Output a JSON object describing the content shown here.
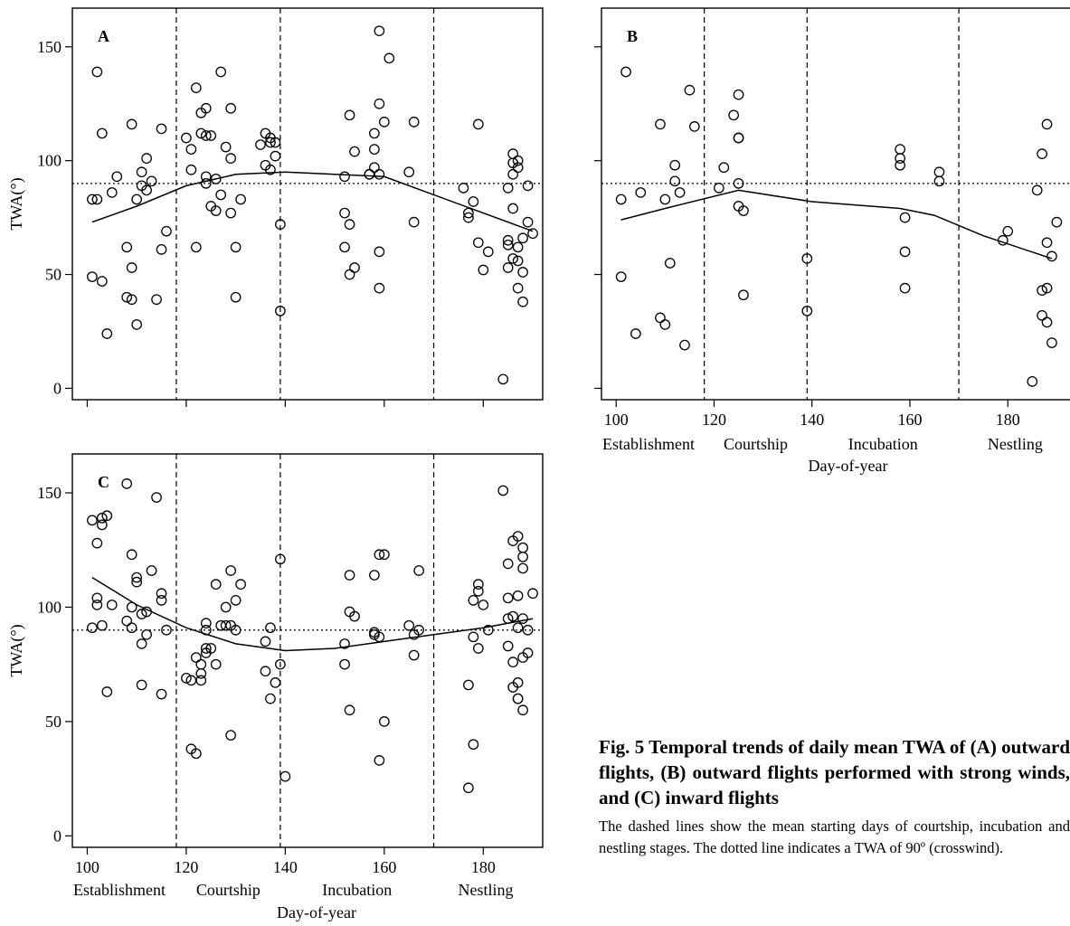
{
  "chart_data": [
    {
      "type": "scatter",
      "panel_label": "A",
      "ylabel": "TWA(°)",
      "xlabel": "",
      "xlim": [
        97,
        192
      ],
      "ylim": [
        -5,
        167
      ],
      "xticks": [
        100,
        120,
        140,
        160,
        180
      ],
      "yticks": [
        0,
        50,
        100,
        150
      ],
      "stage_labels": [],
      "stage_boundaries": [
        118,
        139,
        170
      ],
      "reference_line": 90,
      "points": [
        [
          101,
          49
        ],
        [
          101,
          83
        ],
        [
          102,
          83
        ],
        [
          102,
          139
        ],
        [
          103,
          47
        ],
        [
          103,
          112
        ],
        [
          104,
          24
        ],
        [
          105,
          86
        ],
        [
          106,
          93
        ],
        [
          108,
          62
        ],
        [
          108,
          40
        ],
        [
          109,
          116
        ],
        [
          109,
          53
        ],
        [
          109,
          39
        ],
        [
          110,
          28
        ],
        [
          110,
          83
        ],
        [
          111,
          95
        ],
        [
          111,
          89
        ],
        [
          112,
          87
        ],
        [
          112,
          101
        ],
        [
          113,
          91
        ],
        [
          114,
          39
        ],
        [
          115,
          114
        ],
        [
          115,
          61
        ],
        [
          116,
          69
        ],
        [
          120,
          110
        ],
        [
          121,
          96
        ],
        [
          121,
          105
        ],
        [
          122,
          132
        ],
        [
          122,
          62
        ],
        [
          123,
          121
        ],
        [
          123,
          112
        ],
        [
          124,
          111
        ],
        [
          124,
          93
        ],
        [
          124,
          123
        ],
        [
          124,
          90
        ],
        [
          125,
          80
        ],
        [
          125,
          111
        ],
        [
          126,
          78
        ],
        [
          126,
          92
        ],
        [
          127,
          139
        ],
        [
          127,
          85
        ],
        [
          128,
          106
        ],
        [
          129,
          123
        ],
        [
          129,
          101
        ],
        [
          129,
          77
        ],
        [
          130,
          40
        ],
        [
          130,
          62
        ],
        [
          131,
          83
        ],
        [
          135,
          107
        ],
        [
          136,
          112
        ],
        [
          136,
          98
        ],
        [
          137,
          96
        ],
        [
          137,
          108
        ],
        [
          137,
          110
        ],
        [
          138,
          102
        ],
        [
          138,
          108
        ],
        [
          139,
          34
        ],
        [
          139,
          72
        ],
        [
          152,
          77
        ],
        [
          152,
          93
        ],
        [
          152,
          62
        ],
        [
          153,
          120
        ],
        [
          153,
          72
        ],
        [
          153,
          50
        ],
        [
          154,
          104
        ],
        [
          154,
          53
        ],
        [
          157,
          94
        ],
        [
          157,
          94
        ],
        [
          158,
          105
        ],
        [
          158,
          97
        ],
        [
          158,
          112
        ],
        [
          159,
          157
        ],
        [
          159,
          125
        ],
        [
          159,
          94
        ],
        [
          159,
          60
        ],
        [
          159,
          44
        ],
        [
          160,
          117
        ],
        [
          161,
          145
        ],
        [
          165,
          95
        ],
        [
          166,
          73
        ],
        [
          166,
          117
        ],
        [
          176,
          88
        ],
        [
          177,
          77
        ],
        [
          177,
          75
        ],
        [
          178,
          82
        ],
        [
          179,
          116
        ],
        [
          179,
          64
        ],
        [
          180,
          52
        ],
        [
          181,
          60
        ],
        [
          184,
          4
        ],
        [
          185,
          88
        ],
        [
          185,
          65
        ],
        [
          185,
          63
        ],
        [
          185,
          53
        ],
        [
          186,
          94
        ],
        [
          186,
          103
        ],
        [
          186,
          99
        ],
        [
          186,
          79
        ],
        [
          186,
          57
        ],
        [
          187,
          100
        ],
        [
          187,
          97
        ],
        [
          187,
          62
        ],
        [
          187,
          56
        ],
        [
          187,
          44
        ],
        [
          188,
          51
        ],
        [
          188,
          38
        ],
        [
          188,
          66
        ],
        [
          189,
          89
        ],
        [
          189,
          73
        ],
        [
          190,
          68
        ]
      ],
      "trend_x": [
        101,
        110,
        120,
        130,
        140,
        150,
        160,
        170,
        180,
        190
      ],
      "trend_y": [
        73,
        80,
        89,
        94,
        95,
        94,
        93,
        85,
        77,
        69
      ]
    },
    {
      "type": "scatter",
      "panel_label": "B",
      "ylabel": "",
      "xlabel": "Day-of-year",
      "xlim": [
        97,
        194
      ],
      "ylim": [
        -5,
        167
      ],
      "xticks": [
        100,
        120,
        140,
        160,
        180
      ],
      "yticks": [
        0,
        50,
        100,
        150
      ],
      "stage_labels": [
        "Establishment",
        "Courtship",
        "Incubation",
        "Nestling"
      ],
      "stage_boundaries": [
        118,
        139,
        170
      ],
      "reference_line": 90,
      "points": [
        [
          101,
          49
        ],
        [
          101,
          83
        ],
        [
          102,
          139
        ],
        [
          104,
          24
        ],
        [
          105,
          86
        ],
        [
          109,
          116
        ],
        [
          109,
          31
        ],
        [
          110,
          28
        ],
        [
          110,
          83
        ],
        [
          111,
          55
        ],
        [
          112,
          98
        ],
        [
          112,
          91
        ],
        [
          113,
          86
        ],
        [
          114,
          19
        ],
        [
          115,
          131
        ],
        [
          116,
          115
        ],
        [
          121,
          88
        ],
        [
          122,
          97
        ],
        [
          124,
          120
        ],
        [
          125,
          129
        ],
        [
          125,
          110
        ],
        [
          125,
          110
        ],
        [
          125,
          90
        ],
        [
          125,
          80
        ],
        [
          126,
          78
        ],
        [
          126,
          41
        ],
        [
          139,
          57
        ],
        [
          139,
          34
        ],
        [
          158,
          105
        ],
        [
          158,
          101
        ],
        [
          158,
          98
        ],
        [
          159,
          75
        ],
        [
          159,
          60
        ],
        [
          159,
          44
        ],
        [
          166,
          95
        ],
        [
          166,
          91
        ],
        [
          179,
          65
        ],
        [
          180,
          69
        ],
        [
          185,
          3
        ],
        [
          186,
          87
        ],
        [
          187,
          103
        ],
        [
          187,
          43
        ],
        [
          187,
          32
        ],
        [
          188,
          116
        ],
        [
          188,
          64
        ],
        [
          188,
          44
        ],
        [
          188,
          29
        ],
        [
          189,
          58
        ],
        [
          189,
          20
        ],
        [
          190,
          73
        ]
      ],
      "trend_x": [
        101,
        110,
        125,
        140,
        158,
        165,
        175,
        189
      ],
      "trend_y": [
        74,
        79,
        87,
        82,
        79,
        76,
        67,
        57
      ]
    },
    {
      "type": "scatter",
      "panel_label": "C",
      "ylabel": "TWA(°)",
      "xlabel": "Day-of-year",
      "xlim": [
        97,
        192
      ],
      "ylim": [
        -5,
        167
      ],
      "xticks": [
        100,
        120,
        140,
        160,
        180
      ],
      "yticks": [
        0,
        50,
        100,
        150
      ],
      "stage_labels": [
        "Establishment",
        "Courtship",
        "Incubation",
        "Nestling"
      ],
      "stage_boundaries": [
        118,
        139,
        170
      ],
      "reference_line": 90,
      "points": [
        [
          101,
          138
        ],
        [
          101,
          91
        ],
        [
          102,
          128
        ],
        [
          102,
          104
        ],
        [
          102,
          101
        ],
        [
          103,
          139
        ],
        [
          103,
          136
        ],
        [
          103,
          92
        ],
        [
          104,
          140
        ],
        [
          104,
          63
        ],
        [
          105,
          101
        ],
        [
          108,
          154
        ],
        [
          108,
          94
        ],
        [
          109,
          123
        ],
        [
          109,
          100
        ],
        [
          109,
          91
        ],
        [
          110,
          113
        ],
        [
          110,
          111
        ],
        [
          111,
          84
        ],
        [
          111,
          66
        ],
        [
          111,
          97
        ],
        [
          112,
          88
        ],
        [
          112,
          98
        ],
        [
          113,
          116
        ],
        [
          114,
          148
        ],
        [
          115,
          106
        ],
        [
          115,
          103
        ],
        [
          115,
          62
        ],
        [
          116,
          90
        ],
        [
          120,
          69
        ],
        [
          121,
          38
        ],
        [
          121,
          68
        ],
        [
          122,
          36
        ],
        [
          122,
          78
        ],
        [
          123,
          71
        ],
        [
          123,
          68
        ],
        [
          123,
          75
        ],
        [
          124,
          80
        ],
        [
          124,
          82
        ],
        [
          124,
          90
        ],
        [
          124,
          93
        ],
        [
          125,
          82
        ],
        [
          126,
          110
        ],
        [
          126,
          75
        ],
        [
          127,
          92
        ],
        [
          128,
          100
        ],
        [
          128,
          92
        ],
        [
          129,
          116
        ],
        [
          129,
          44
        ],
        [
          129,
          92
        ],
        [
          130,
          103
        ],
        [
          130,
          90
        ],
        [
          131,
          110
        ],
        [
          136,
          85
        ],
        [
          136,
          72
        ],
        [
          137,
          91
        ],
        [
          137,
          60
        ],
        [
          138,
          67
        ],
        [
          139,
          121
        ],
        [
          139,
          75
        ],
        [
          140,
          26
        ],
        [
          152,
          84
        ],
        [
          152,
          75
        ],
        [
          153,
          114
        ],
        [
          153,
          98
        ],
        [
          153,
          55
        ],
        [
          154,
          96
        ],
        [
          158,
          114
        ],
        [
          158,
          88
        ],
        [
          158,
          89
        ],
        [
          159,
          87
        ],
        [
          159,
          33
        ],
        [
          159,
          123
        ],
        [
          160,
          123
        ],
        [
          160,
          50
        ],
        [
          165,
          92
        ],
        [
          166,
          79
        ],
        [
          166,
          88
        ],
        [
          167,
          116
        ],
        [
          167,
          90
        ],
        [
          177,
          21
        ],
        [
          177,
          66
        ],
        [
          178,
          40
        ],
        [
          178,
          103
        ],
        [
          178,
          87
        ],
        [
          179,
          82
        ],
        [
          179,
          107
        ],
        [
          179,
          110
        ],
        [
          180,
          101
        ],
        [
          181,
          90
        ],
        [
          184,
          151
        ],
        [
          185,
          119
        ],
        [
          185,
          104
        ],
        [
          185,
          95
        ],
        [
          185,
          83
        ],
        [
          186,
          129
        ],
        [
          186,
          96
        ],
        [
          186,
          76
        ],
        [
          186,
          65
        ],
        [
          187,
          131
        ],
        [
          187,
          105
        ],
        [
          187,
          91
        ],
        [
          187,
          67
        ],
        [
          187,
          60
        ],
        [
          187,
          60
        ],
        [
          188,
          126
        ],
        [
          188,
          122
        ],
        [
          188,
          117
        ],
        [
          188,
          95
        ],
        [
          188,
          78
        ],
        [
          188,
          55
        ],
        [
          189,
          80
        ],
        [
          189,
          90
        ],
        [
          190,
          106
        ]
      ],
      "trend_x": [
        101,
        110,
        120,
        130,
        140,
        150,
        160,
        170,
        180,
        190
      ],
      "trend_y": [
        113,
        101,
        91,
        84,
        81,
        82,
        85,
        88,
        91,
        95
      ]
    }
  ],
  "caption": {
    "title": "Fig. 5   Temporal trends of daily mean TWA of (A) outward flights, (B) outward flights performed with strong winds, and (C) inward flights",
    "body": "The dashed lines show the mean starting days of courtship, incubation and nestling stages. The dotted line indicates a TWA of 90º (crosswind)."
  }
}
